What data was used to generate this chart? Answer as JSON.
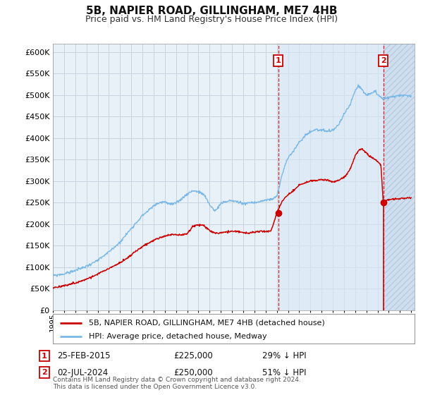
{
  "title": "5B, NAPIER ROAD, GILLINGHAM, ME7 4HB",
  "subtitle": "Price paid vs. HM Land Registry's House Price Index (HPI)",
  "bg_color": "#ffffff",
  "plot_bg_color": "#e8f0f8",
  "grid_color": "#c8d4e0",
  "hpi_color": "#7ab8e8",
  "price_color": "#cc0000",
  "marker_color": "#cc0000",
  "ylim": [
    0,
    620000
  ],
  "yticks": [
    0,
    50000,
    100000,
    150000,
    200000,
    250000,
    300000,
    350000,
    400000,
    450000,
    500000,
    550000,
    600000
  ],
  "xlim_min": 1995.0,
  "xlim_max": 2027.3,
  "legend_label_price": "5B, NAPIER ROAD, GILLINGHAM, ME7 4HB (detached house)",
  "legend_label_hpi": "HPI: Average price, detached house, Medway",
  "annotation1_date": "25-FEB-2015",
  "annotation1_price": "£225,000",
  "annotation1_pct": "29% ↓ HPI",
  "annotation2_date": "02-JUL-2024",
  "annotation2_price": "£250,000",
  "annotation2_pct": "51% ↓ HPI",
  "footnote": "Contains HM Land Registry data © Crown copyright and database right 2024.\nThis data is licensed under the Open Government Licence v3.0.",
  "sale1_x": 2015.12,
  "sale1_y": 225000,
  "sale2_x": 2024.5,
  "sale2_y": 250000,
  "hatch_start": 2024.5,
  "hatch_end": 2027.3,
  "shade_start": 2015.12,
  "shade_end": 2024.5
}
